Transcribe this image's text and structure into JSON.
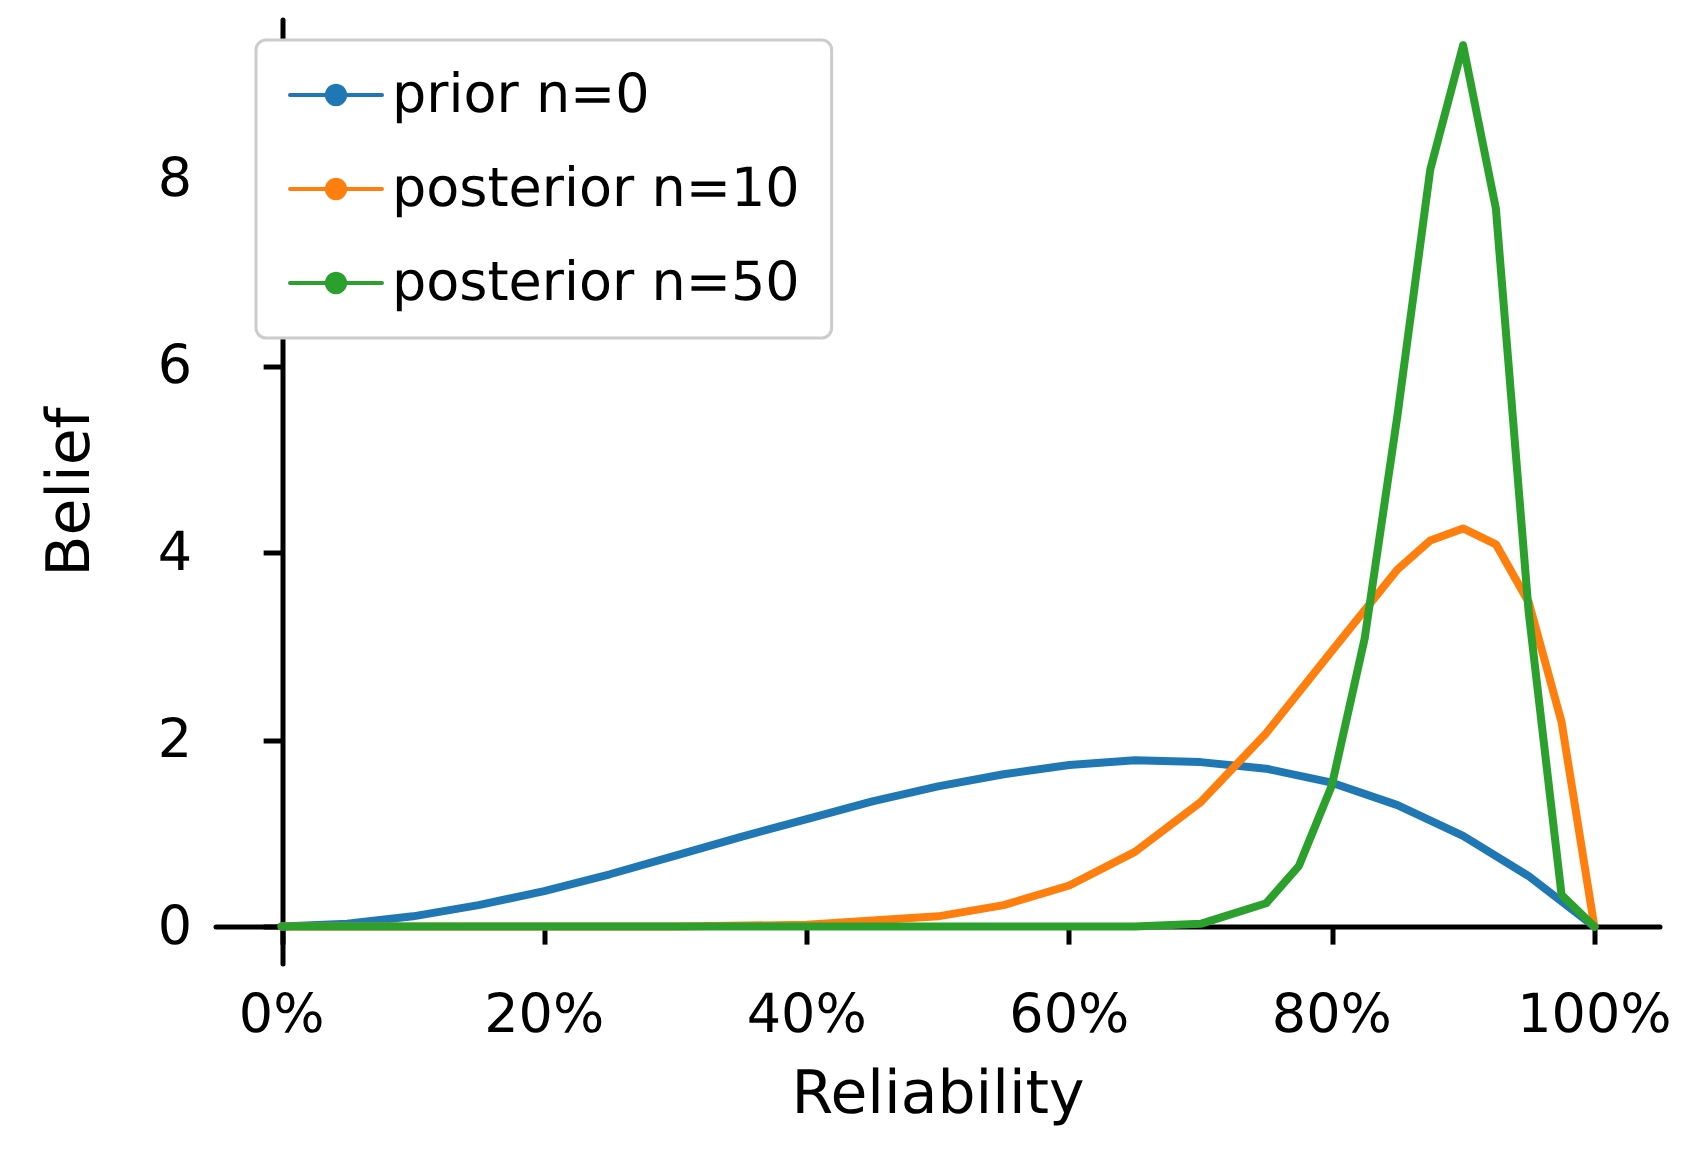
{
  "chart_data": {
    "type": "line",
    "xlabel": "Reliability",
    "ylabel": "Belief",
    "xlim": [
      -0.05,
      1.05
    ],
    "ylim": [
      -0.4,
      9.7
    ],
    "xticks": [
      {
        "value": 0,
        "label": "0%"
      },
      {
        "value": 0.2,
        "label": "20%"
      },
      {
        "value": 0.4,
        "label": "40%"
      },
      {
        "value": 0.6,
        "label": "60%"
      },
      {
        "value": 0.8,
        "label": "80%"
      },
      {
        "value": 1,
        "label": "100%"
      }
    ],
    "yticks": [
      0,
      2,
      4,
      6,
      8
    ],
    "legend": "top left",
    "grid": false,
    "marker": "none",
    "line_style": "solid",
    "series": [
      {
        "name": "prior n=0",
        "color": "#1f77b4",
        "x": [
          0,
          0.05,
          0.1,
          0.15,
          0.2,
          0.25,
          0.3,
          0.35,
          0.4,
          0.45,
          0.5,
          0.55,
          0.6,
          0.65,
          0.7,
          0.75,
          0.8,
          0.85,
          0.9,
          0.95,
          1
        ],
        "values": [
          0,
          0.03,
          0.11,
          0.23,
          0.38,
          0.56,
          0.76,
          0.96,
          1.15,
          1.34,
          1.5,
          1.63,
          1.73,
          1.78,
          1.76,
          1.69,
          1.54,
          1.3,
          0.97,
          0.54,
          0
        ]
      },
      {
        "name": "posterior n=10",
        "color": "#ff7f0e",
        "x": [
          0,
          0.3,
          0.4,
          0.5,
          0.55,
          0.6,
          0.65,
          0.7,
          0.75,
          0.8,
          0.85,
          0.875,
          0.9,
          0.925,
          0.95,
          0.975,
          1
        ],
        "values": [
          0,
          0,
          0.02,
          0.11,
          0.23,
          0.44,
          0.8,
          1.33,
          2.07,
          2.95,
          3.82,
          4.13,
          4.26,
          4.09,
          3.47,
          2.19,
          0
        ]
      },
      {
        "name": "posterior n=50",
        "color": "#2ca02c",
        "x": [
          0,
          0.6,
          0.65,
          0.7,
          0.75,
          0.775,
          0.8,
          0.825,
          0.85,
          0.875,
          0.9,
          0.925,
          0.95,
          0.975,
          1
        ],
        "values": [
          0,
          0,
          0,
          0.03,
          0.25,
          0.65,
          1.51,
          3.08,
          5.47,
          8.1,
          9.43,
          7.68,
          3.36,
          0.34,
          0
        ]
      }
    ]
  }
}
